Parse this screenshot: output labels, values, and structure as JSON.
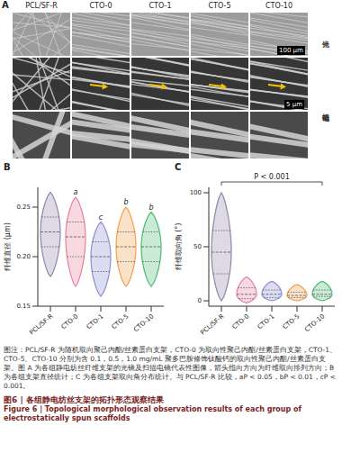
{
  "panel_a": {
    "letter": "A",
    "columns": [
      "PCL/SF-R",
      "CTO-0",
      "CTO-1",
      "CTO-5",
      "CTO-10"
    ],
    "rows": [
      "光镜",
      "扫描电镜"
    ],
    "scale_bars": [
      "100 μm",
      "5 μm"
    ]
  },
  "chart_data": [
    {
      "type": "violin",
      "panel": "B",
      "y_label": "纤维直径 (μm)",
      "categories": [
        "PCL/SF-R",
        "CTO-0",
        "CTO-1",
        "CTO-5",
        "CTO-10"
      ],
      "values": [
        {
          "min": 0.18,
          "q1": 0.21,
          "median": 0.225,
          "q3": 0.24,
          "max": 0.265
        },
        {
          "min": 0.17,
          "q1": 0.2,
          "median": 0.22,
          "q3": 0.235,
          "max": 0.26
        },
        {
          "min": 0.16,
          "q1": 0.185,
          "median": 0.2,
          "q3": 0.215,
          "max": 0.235
        },
        {
          "min": 0.17,
          "q1": 0.195,
          "median": 0.21,
          "q3": 0.225,
          "max": 0.25
        },
        {
          "min": 0.17,
          "q1": 0.195,
          "median": 0.21,
          "q3": 0.225,
          "max": 0.245
        }
      ],
      "annotations": [
        null,
        "a",
        "c",
        "b",
        "b"
      ],
      "colors": [
        "#8e86a8",
        "#e8809e",
        "#8c8ed8",
        "#f0a04c",
        "#4cb870"
      ],
      "ylim": [
        0.15,
        0.27
      ],
      "yticks": [
        {
          "value": 0.15,
          "label": "0.15"
        },
        {
          "value": 0.2,
          "label": "0.20"
        },
        {
          "value": 0.25,
          "label": "0.25"
        }
      ]
    },
    {
      "type": "violin",
      "panel": "C",
      "y_label": "纤维取向角 (°)",
      "categories": [
        "PCL/SF-R",
        "CTO-0",
        "CTO-1",
        "CTO-5",
        "CTO-10"
      ],
      "values": [
        {
          "min": 0,
          "q1": 25,
          "median": 45,
          "q3": 65,
          "max": 100
        },
        {
          "min": -2,
          "q1": 2,
          "median": 6,
          "q3": 12,
          "max": 22
        },
        {
          "min": 0,
          "q1": 3,
          "median": 6,
          "q3": 10,
          "max": 18
        },
        {
          "min": 0,
          "q1": 3,
          "median": 5,
          "q3": 8,
          "max": 15
        },
        {
          "min": 0,
          "q1": 4,
          "median": 6,
          "q3": 10,
          "max": 18
        }
      ],
      "annotation": "P < 0.001",
      "colors": [
        "#8e86a8",
        "#e8809e",
        "#8c8ed8",
        "#f0a04c",
        "#4cb870"
      ],
      "ylim": [
        -5,
        105
      ],
      "yticks": [
        0,
        50,
        100
      ]
    }
  ],
  "caption": {
    "note": "图注：PCL/SF-R 为随机取向聚己内酯/丝素蛋白支架，CTO-0 为取向性聚己内酯/丝素蛋白支架，CTO-1、CTO-5、CTO-10 分别为含 0.1，0.5，1.0 mg/mL 聚多巴胺修饰钛酸钙的取向性聚己内酯/丝素蛋白支架。图 A 为各组静电纺丝纤维支架的光镜及扫描电镜代表性图像，箭头指向方向为纤维取向排列方向；B 为各组支架直径统计；C 为各组支架取向角分布统计。与 PCL/SF-R 比较，aP < 0.05，bP < 0.01，cP < 0.001。",
    "title_zh": "图6 | 各组静电纺丝支架的拓扑形态观察结果",
    "title_en": "Figure 6 | Topological morphological observation results of each group of electrostatically spun scaffolds"
  }
}
